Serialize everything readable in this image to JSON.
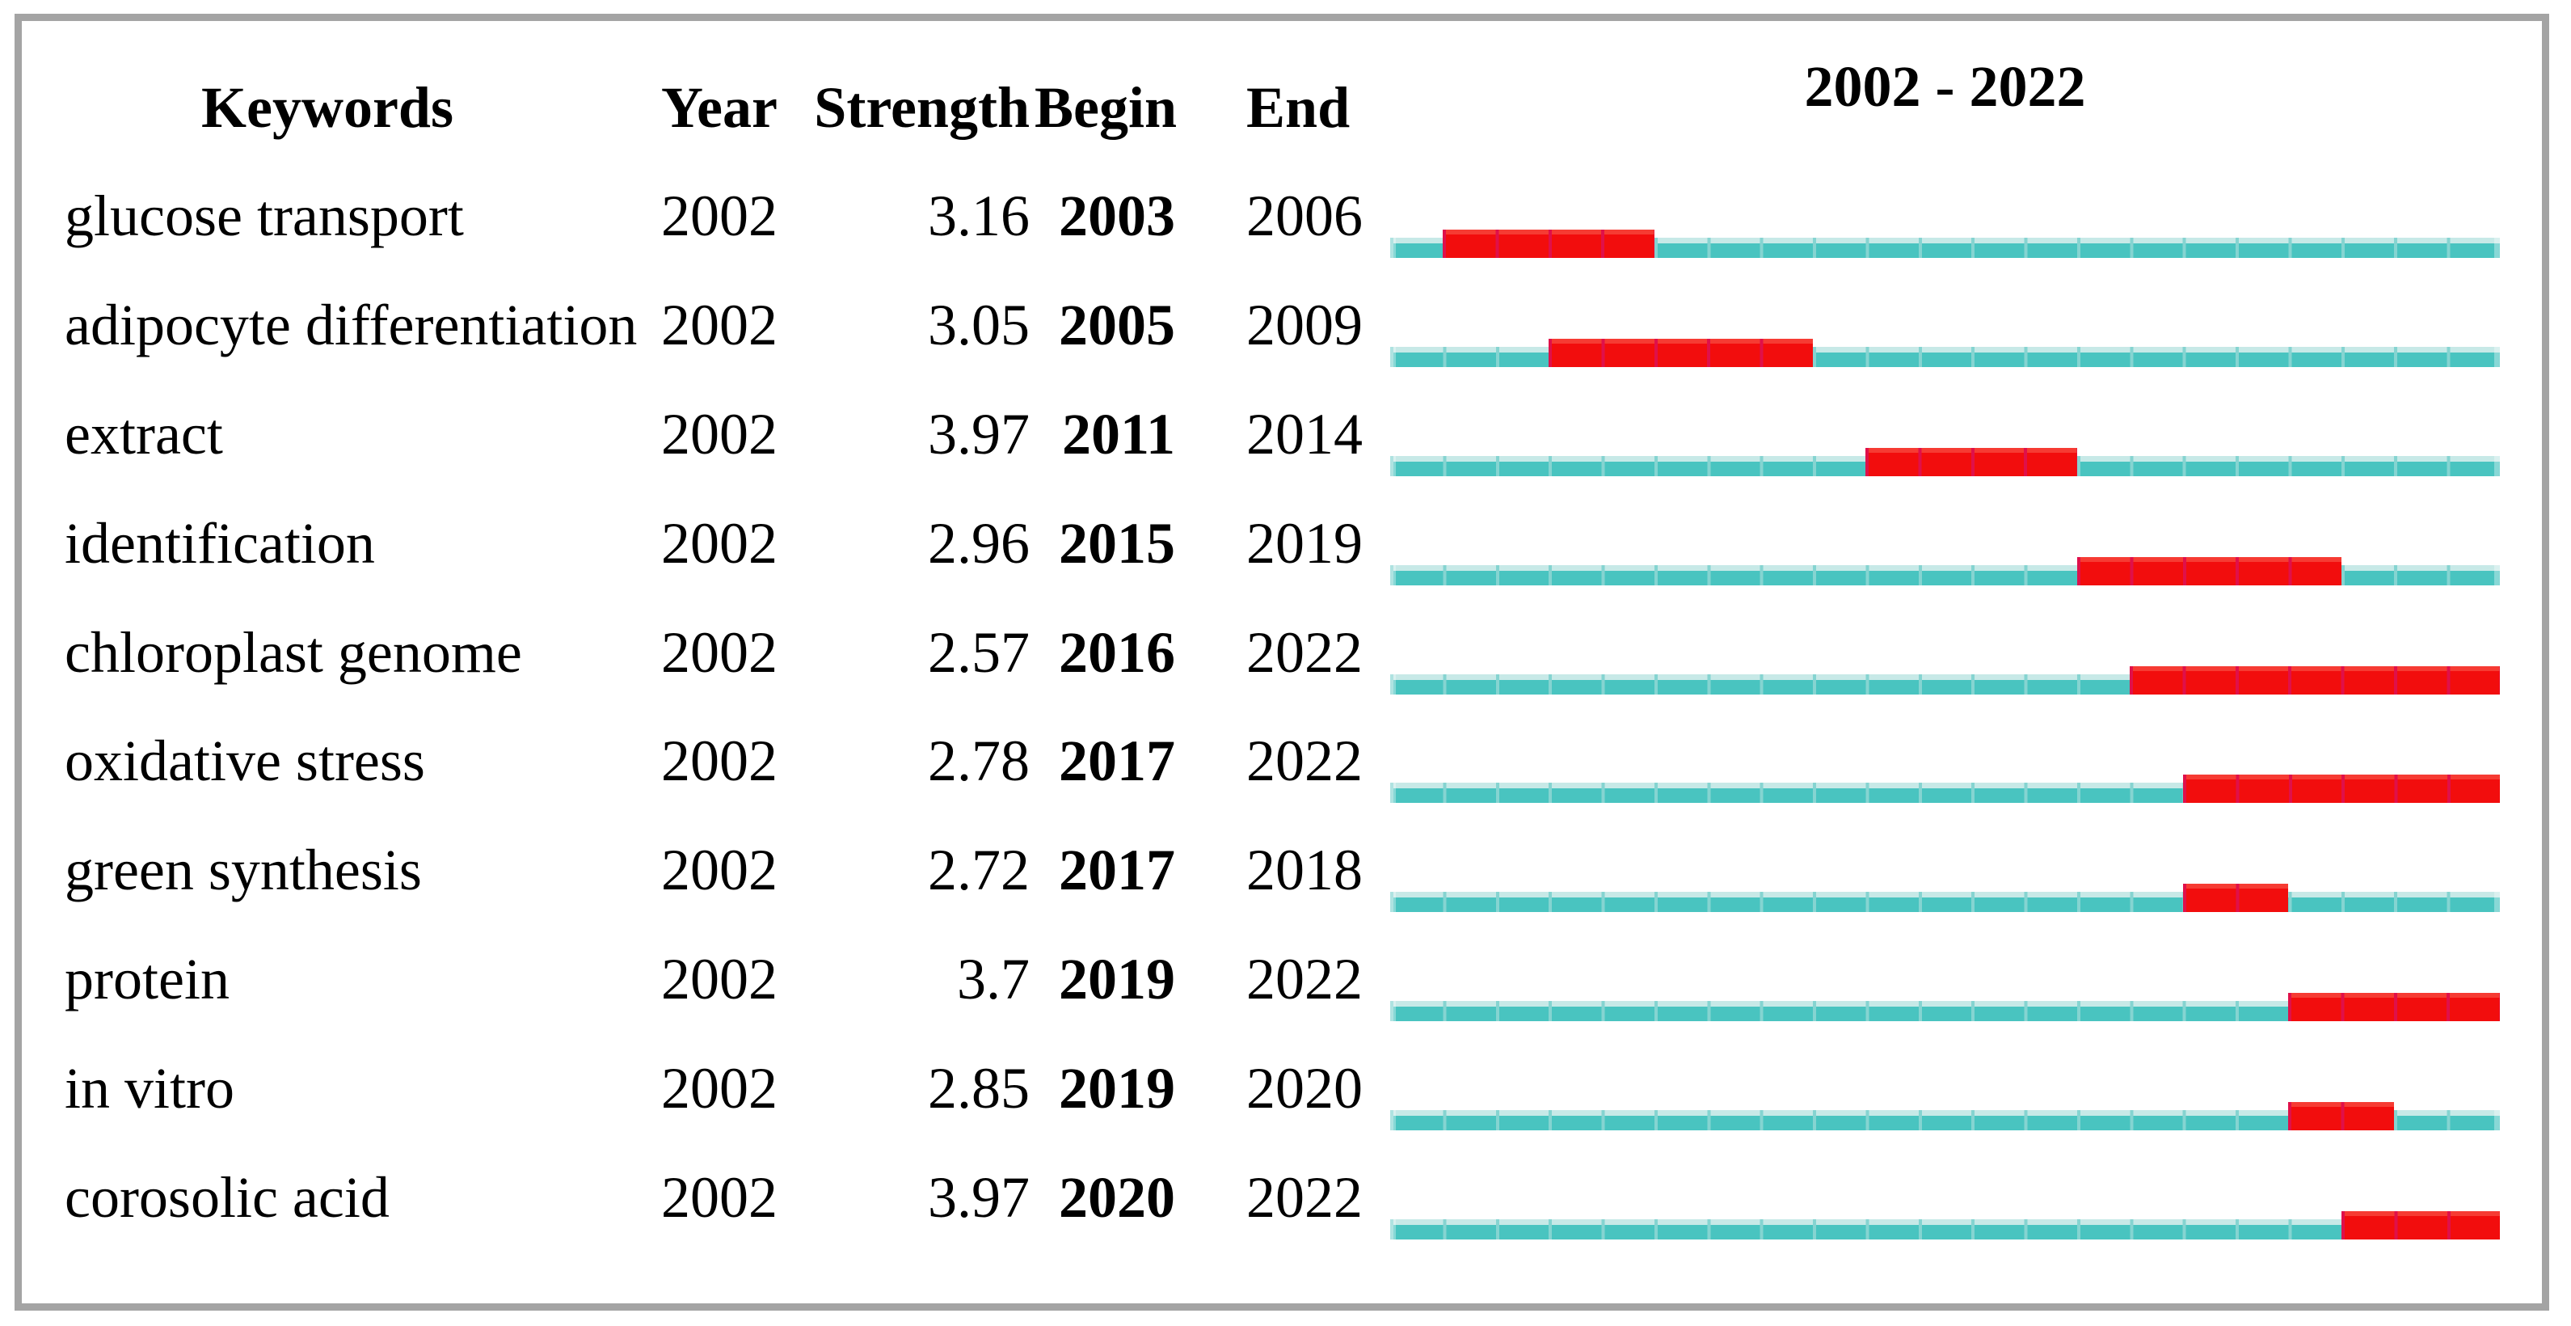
{
  "header": {
    "keywords": "Keywords",
    "year": "Year",
    "strength": "Strength",
    "begin": "Begin",
    "end": "End",
    "range": "2002 - 2022"
  },
  "colors": {
    "teal": "#49c4c0",
    "teal_light": "#c7e9e7",
    "teal_divider": "#85d4d1",
    "burst_red": "#f20d0d",
    "burst_divider": "#e0104a",
    "frame_gray": "#a4a4a4"
  },
  "chart_data": {
    "type": "bar",
    "subtype": "citation-burst-timeline",
    "title": "2002 - 2022",
    "timeline": {
      "start": 2002,
      "end": 2022
    },
    "legend": {
      "track_color_meaning": "full 2002-2022 period",
      "burst_color_meaning": "burst duration from Begin to End year"
    },
    "columns": [
      "Keywords",
      "Year",
      "Strength",
      "Begin",
      "End"
    ],
    "rows": [
      {
        "keyword": "glucose transport",
        "year": "2002",
        "strength": "3.16",
        "begin": 2003,
        "end": 2006
      },
      {
        "keyword": "adipocyte differentiation",
        "year": "2002",
        "strength": "3.05",
        "begin": 2005,
        "end": 2009
      },
      {
        "keyword": "extract",
        "year": "2002",
        "strength": "3.97",
        "begin": 2011,
        "end": 2014
      },
      {
        "keyword": "identification",
        "year": "2002",
        "strength": "2.96",
        "begin": 2015,
        "end": 2019
      },
      {
        "keyword": "chloroplast genome",
        "year": "2002",
        "strength": "2.57",
        "begin": 2016,
        "end": 2022
      },
      {
        "keyword": "oxidative stress",
        "year": "2002",
        "strength": "2.78",
        "begin": 2017,
        "end": 2022
      },
      {
        "keyword": "green synthesis",
        "year": "2002",
        "strength": "2.72",
        "begin": 2017,
        "end": 2018
      },
      {
        "keyword": "protein",
        "year": "2002",
        "strength": "3.7",
        "begin": 2019,
        "end": 2022
      },
      {
        "keyword": "in vitro",
        "year": "2002",
        "strength": "2.85",
        "begin": 2019,
        "end": 2020
      },
      {
        "keyword": "corosolic acid",
        "year": "2002",
        "strength": "3.97",
        "begin": 2020,
        "end": 2022
      }
    ]
  }
}
